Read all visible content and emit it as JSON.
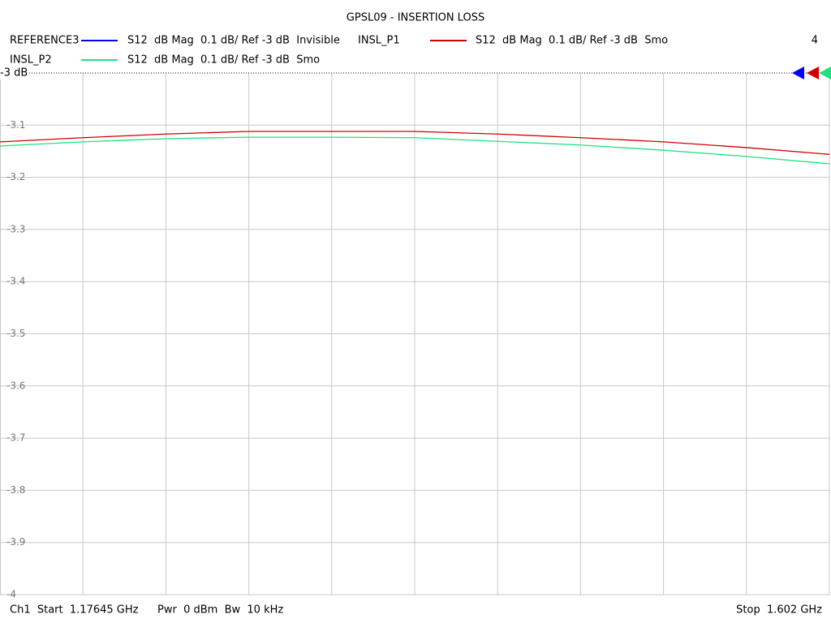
{
  "chart_data": {
    "type": "line",
    "title": "GPSL09 - INSERTION LOSS",
    "x": [
      1.17645,
      1.219005,
      1.26156,
      1.304115,
      1.34667,
      1.389225,
      1.43178,
      1.474335,
      1.51689,
      1.559445,
      1.602
    ],
    "xlim": [
      1.17645,
      1.602
    ],
    "ylim": [
      -4,
      -3
    ],
    "yticks": [
      {
        "value": -3,
        "label": "-3 dB"
      },
      -3.1,
      -3.2,
      -3.3,
      -3.4,
      -3.5,
      -3.6,
      -3.7,
      -3.8,
      -3.9,
      -4
    ],
    "grid": true,
    "series": [
      {
        "name": "REFERENCE3",
        "description": "S12  dB Mag  0.1 dB/ Ref -3 dB  Invisible",
        "color": "#0000ff",
        "visible": false,
        "values": [
          null,
          null,
          null,
          null,
          null,
          null,
          null,
          null,
          null,
          null,
          null
        ]
      },
      {
        "name": "INSL_P1",
        "description": "S12  dB Mag  0.1 dB/ Ref -3 dB  Smo",
        "color": "#d00000",
        "visible": true,
        "values": [
          -3.132,
          -3.124,
          -3.117,
          -3.112,
          -3.112,
          -3.112,
          -3.117,
          -3.124,
          -3.132,
          -3.143,
          -3.156
        ]
      },
      {
        "name": "INSL_P2",
        "description": "S12  dB Mag  0.1 dB/ Ref -3 dB  Smo",
        "color": "#20e080",
        "visible": true,
        "values": [
          -3.14,
          -3.132,
          -3.126,
          -3.123,
          -3.123,
          -3.124,
          -3.131,
          -3.138,
          -3.148,
          -3.16,
          -3.174
        ]
      }
    ],
    "window_number": "4",
    "footer": {
      "start": "Ch1  Start  1.17645 GHz",
      "power": "Pwr  0 dBm  Bw  10 kHz",
      "stop": "Stop  1.602 GHz"
    }
  }
}
